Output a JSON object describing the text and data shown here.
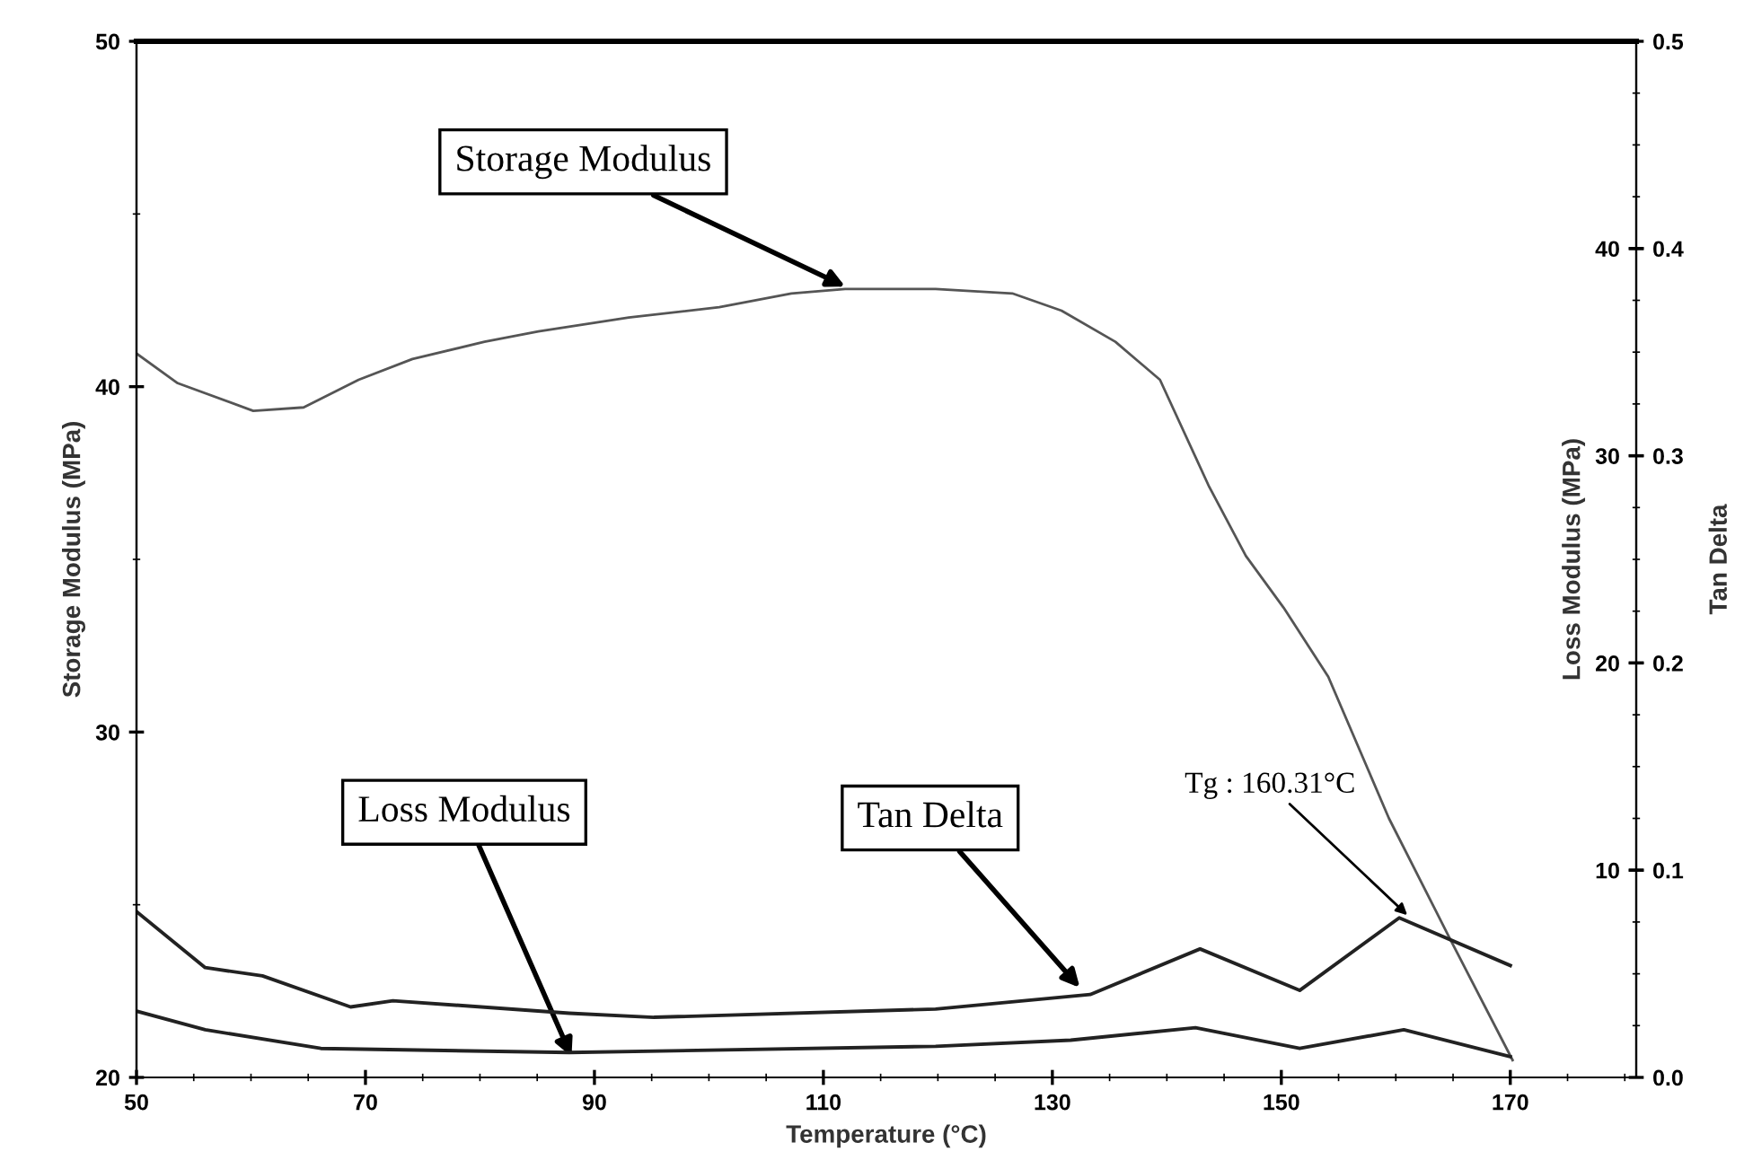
{
  "chart_data": {
    "type": "line",
    "xlabel": "Temperature (°C)",
    "ylabel": "Storage Modulus (MPa)",
    "y2label": "Loss Modulus (MPa)",
    "y3label": "Tan Delta",
    "xlim": [
      50,
      181
    ],
    "xticks": [
      50,
      70,
      90,
      110,
      130,
      150,
      170
    ],
    "ylim": [
      20,
      50
    ],
    "yticks": [
      20,
      30,
      40,
      50
    ],
    "y2lim": [
      0,
      50
    ],
    "y2ticks": [
      10,
      20,
      30,
      40
    ],
    "y3lim": [
      0,
      0.5
    ],
    "y3ticks": [
      {
        "value": 0,
        "label": "0.0"
      },
      0.1,
      0.2,
      0.3,
      0.4,
      0.5
    ],
    "grid": false,
    "legend": false,
    "marker": "none",
    "line_style": "solid",
    "series": [
      {
        "color": "#555555",
        "x": [
          50,
          53.6,
          60.2,
          64.6,
          69.4,
          74.1,
          80.4,
          85.1,
          93.0,
          100.9,
          107.2,
          111.9,
          119.8,
          126.5,
          130.8,
          135.5,
          139.4,
          143.7,
          146.9,
          150.2,
          154.1,
          159.4,
          164.6,
          170.2
        ],
        "values": [
          40.96,
          40.1,
          39.3,
          39.4,
          40.2,
          40.8,
          41.3,
          41.6,
          42.0,
          42.3,
          42.7,
          42.83,
          42.83,
          42.7,
          42.2,
          41.3,
          40.2,
          37.1,
          35.1,
          33.6,
          31.6,
          27.5,
          24.1,
          20.5
        ]
      },
      {
        "color": "#222222",
        "axis": "y3",
        "x": [
          50,
          56.0,
          61.0,
          68.7,
          72.4,
          87.8,
          95.2,
          119.8,
          133.3,
          142.9,
          151.6,
          160.3,
          170
        ],
        "values": [
          0.08,
          0.053,
          0.049,
          0.034,
          0.037,
          0.031,
          0.029,
          0.033,
          0.04,
          0.062,
          0.042,
          0.077,
          0.054
        ]
      },
      {
        "color": "#222222",
        "axis": "y2",
        "x": [
          50,
          56.0,
          66.1,
          87.8,
          119.8,
          131.6,
          142.5,
          151.6,
          160.7,
          170
        ],
        "values": [
          3.2,
          2.3,
          1.4,
          1.2,
          1.5,
          1.8,
          2.4,
          1.4,
          2.3,
          1.0
        ]
      }
    ],
    "annotations": [
      {
        "text": "Storage Modulus",
        "x": 111.9,
        "y": 42.9
      },
      {
        "text": "Loss Modulus",
        "x": 88,
        "y": 20.6
      },
      {
        "text": "Tan Delta",
        "x": 132.4,
        "y": 22.6
      },
      {
        "text": "Tg : 160.31°C",
        "x": 161,
        "y": 24.7
      }
    ]
  }
}
